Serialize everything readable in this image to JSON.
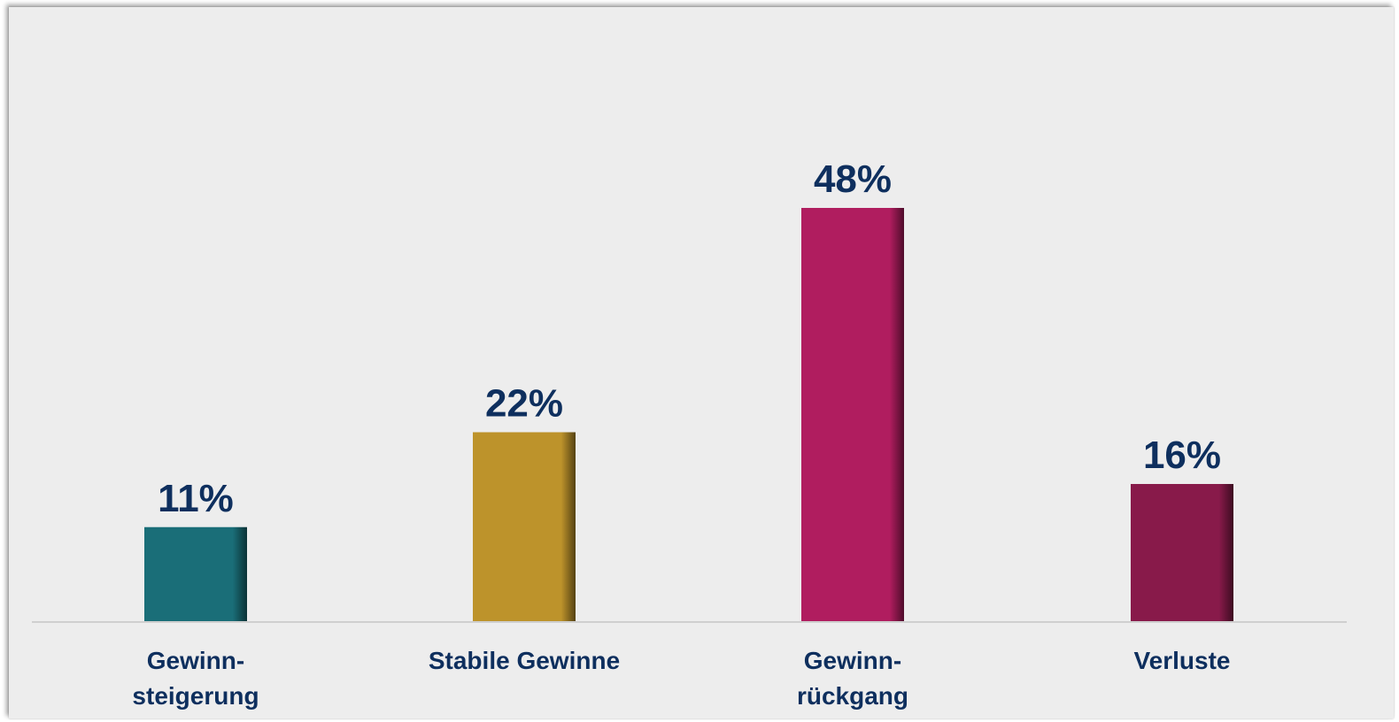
{
  "chart_data": {
    "type": "bar",
    "categories": [
      [
        "Gewinn-",
        "steigerung"
      ],
      [
        "Stabile Gewinne"
      ],
      [
        "Gewinn-",
        "rückgang"
      ],
      [
        "Verluste"
      ]
    ],
    "values": [
      11,
      22,
      48,
      16
    ],
    "value_labels": [
      "11%",
      "22%",
      "48%",
      "16%"
    ],
    "colors": [
      "#1a6e78",
      "#bd932b",
      "#b01d5f",
      "#881a4a"
    ],
    "ylim": [
      0,
      60
    ],
    "title": "",
    "xlabel": "",
    "ylabel": "",
    "grid": false,
    "legend": "none"
  }
}
